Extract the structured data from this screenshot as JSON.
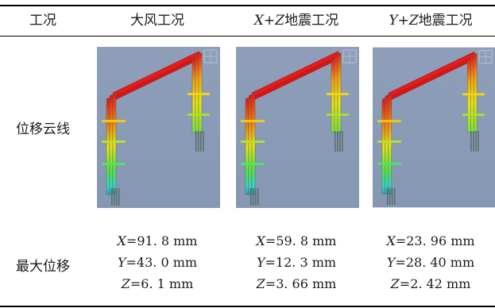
{
  "headers": {
    "case": "工况",
    "wind": "大风工况",
    "xz_prefix": "X+Z",
    "yz_prefix": "Y+Z",
    "seismic_suffix": "地震工况"
  },
  "rows": {
    "contour_label": "位移云线",
    "max_label": "最大位移"
  },
  "colors": {
    "max": "#e41c1c",
    "mid": "#e7e11a",
    "low": "#3ad2c8",
    "base": "#5a7070",
    "background": "#8597b3"
  },
  "values": {
    "wind": {
      "x": "91. 8 mm",
      "y": "43. 0 mm",
      "z": "6. 1 mm"
    },
    "xz": {
      "x": "59. 8 mm",
      "y": "12. 3 mm",
      "z": "3. 66 mm"
    },
    "yz": {
      "x": "23. 96 mm",
      "y": "28. 40 mm",
      "z": "2. 42 mm"
    }
  },
  "axis_symbols": {
    "x": "X",
    "y": "Y",
    "z": "Z",
    "eq": "="
  }
}
